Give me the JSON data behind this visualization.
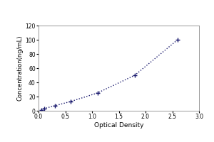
{
  "x": [
    0.05,
    0.1,
    0.3,
    0.6,
    1.1,
    1.8,
    2.6
  ],
  "y": [
    1.0,
    3.0,
    7.0,
    13.0,
    25.0,
    50.0,
    100.0
  ],
  "xlabel": "Optical Density",
  "ylabel": "Concentration(ng/mL)",
  "xlim": [
    0,
    3
  ],
  "ylim": [
    0,
    120
  ],
  "xticks": [
    0,
    0.5,
    1.0,
    1.5,
    2.0,
    2.5,
    3.0
  ],
  "yticks": [
    0,
    20,
    40,
    60,
    80,
    100,
    120
  ],
  "line_color": "#1a1a6e",
  "marker": "+",
  "marker_size": 5,
  "line_style": "dotted",
  "background_color": "#ffffff",
  "spine_color": "#888888",
  "xlabel_fontsize": 6.5,
  "ylabel_fontsize": 6.0,
  "tick_fontsize": 5.5
}
